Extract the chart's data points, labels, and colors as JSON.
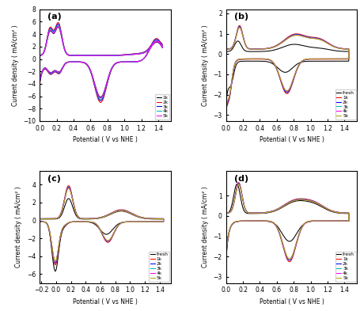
{
  "panels": [
    "(a)",
    "(b)",
    "(c)",
    "(d)"
  ],
  "xlabel": "Potential ( V vs NHE )",
  "ylabel": "Current density ( mA/cm² )",
  "panel_a": {
    "xlim": [
      0.0,
      1.55
    ],
    "ylim": [
      -10,
      8
    ],
    "yticks": [
      -10,
      -8,
      -6,
      -4,
      -2,
      0,
      2,
      4,
      6,
      8
    ],
    "xticks": [
      0.0,
      0.2,
      0.4,
      0.6,
      0.8,
      1.0,
      1.2,
      1.4
    ],
    "legend": [
      "1k",
      "2k",
      "3k",
      "4k",
      "5k"
    ],
    "colors": [
      "#000000",
      "#ff0000",
      "#0000ff",
      "#00bbbb",
      "#ff00ff"
    ],
    "scales": [
      0.88,
      1.0,
      0.96,
      0.93,
      0.9
    ]
  },
  "panel_b": {
    "xlim": [
      0.0,
      1.55
    ],
    "ylim": [
      -3.3,
      2.2
    ],
    "yticks": [
      -3,
      -2,
      -1,
      0,
      1,
      2
    ],
    "xticks": [
      0.0,
      0.2,
      0.4,
      0.6,
      0.8,
      1.0,
      1.2,
      1.4
    ],
    "legend": [
      "fresh",
      "1k",
      "2k",
      "3k",
      "4k",
      "5k"
    ],
    "colors": [
      "#000000",
      "#ff0000",
      "#0000ff",
      "#00bbbb",
      "#ff00ff",
      "#aaaa00"
    ]
  },
  "panel_c": {
    "xlim": [
      -0.22,
      1.55
    ],
    "ylim": [
      -7,
      5.5
    ],
    "yticks": [
      -6,
      -4,
      -2,
      0,
      2,
      4
    ],
    "xticks": [
      -0.2,
      0.0,
      0.2,
      0.4,
      0.6,
      0.8,
      1.0,
      1.2,
      1.4
    ],
    "legend": [
      "fresh",
      "1k",
      "2k",
      "3k",
      "4k",
      "5k"
    ],
    "colors": [
      "#000000",
      "#ff0000",
      "#0000ff",
      "#00bbbb",
      "#ff00ff",
      "#aaaa00"
    ]
  },
  "panel_d": {
    "xlim": [
      0.0,
      1.55
    ],
    "ylim": [
      -3.3,
      2.2
    ],
    "yticks": [
      -3,
      -2,
      -1,
      0,
      1
    ],
    "xticks": [
      0.0,
      0.2,
      0.4,
      0.6,
      0.8,
      1.0,
      1.2,
      1.4
    ],
    "legend": [
      "fresh",
      "1k",
      "2k",
      "3k",
      "4k",
      "5k"
    ],
    "colors": [
      "#000000",
      "#ff0000",
      "#0000ff",
      "#00bbbb",
      "#ff00ff",
      "#aaaa00"
    ]
  }
}
